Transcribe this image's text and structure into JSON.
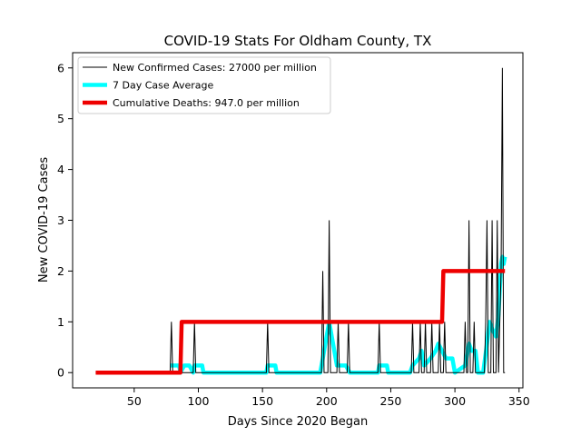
{
  "chart_data": {
    "type": "line",
    "title": "COVID-19 Stats For Oldham County, TX",
    "xlabel": "Days Since 2020 Began",
    "ylabel": "New COVID-19 Cases",
    "xlim": [
      2,
      353
    ],
    "ylim": [
      -0.3,
      6.3
    ],
    "xticks": [
      50,
      100,
      150,
      200,
      250,
      300,
      350
    ],
    "yticks": [
      0,
      1,
      2,
      3,
      4,
      5,
      6
    ],
    "grid": false,
    "legend_position": "top-left",
    "series": [
      {
        "name": "New Confirmed Cases: 27000 per million",
        "color": "#000000",
        "points": [
          [
            20,
            0
          ],
          [
            78,
            0
          ],
          [
            79,
            1
          ],
          [
            80,
            0
          ],
          [
            96,
            0
          ],
          [
            97,
            1
          ],
          [
            98,
            0
          ],
          [
            153,
            0
          ],
          [
            154,
            1
          ],
          [
            155,
            0
          ],
          [
            196,
            0
          ],
          [
            197,
            2
          ],
          [
            198,
            0
          ],
          [
            201,
            0
          ],
          [
            202,
            3
          ],
          [
            203,
            0
          ],
          [
            208,
            0
          ],
          [
            209,
            1
          ],
          [
            210,
            0
          ],
          [
            216,
            0
          ],
          [
            217,
            1
          ],
          [
            218,
            0
          ],
          [
            240,
            0
          ],
          [
            241,
            1
          ],
          [
            242,
            0
          ],
          [
            266,
            0
          ],
          [
            267,
            1
          ],
          [
            268,
            0
          ],
          [
            272,
            0
          ],
          [
            273,
            1
          ],
          [
            274,
            0
          ],
          [
            276,
            0
          ],
          [
            277,
            1
          ],
          [
            278,
            0
          ],
          [
            281,
            0
          ],
          [
            282,
            1
          ],
          [
            283,
            0
          ],
          [
            287,
            0
          ],
          [
            288,
            1
          ],
          [
            289,
            0
          ],
          [
            291,
            0
          ],
          [
            292,
            1
          ],
          [
            293,
            0
          ],
          [
            307,
            0
          ],
          [
            308,
            1
          ],
          [
            309,
            0
          ],
          [
            310,
            0
          ],
          [
            311,
            3
          ],
          [
            312,
            0
          ],
          [
            314,
            0
          ],
          [
            315,
            1
          ],
          [
            316,
            0
          ],
          [
            323,
            0
          ],
          [
            324,
            1
          ],
          [
            325,
            3
          ],
          [
            326,
            0
          ],
          [
            328,
            0
          ],
          [
            329,
            3
          ],
          [
            330,
            0
          ],
          [
            332,
            0
          ],
          [
            333,
            3
          ],
          [
            334,
            0
          ],
          [
            336,
            2
          ],
          [
            337,
            6
          ],
          [
            338,
            0
          ],
          [
            339,
            0
          ]
        ]
      },
      {
        "name": "7 Day Case Average",
        "color": "#00ffff",
        "points": [
          [
            78,
            0.14
          ],
          [
            85,
            0.14
          ],
          [
            86,
            0.0
          ],
          [
            89,
            0.14
          ],
          [
            93,
            0.14
          ],
          [
            96,
            0.0
          ],
          [
            97,
            0.14
          ],
          [
            103,
            0.14
          ],
          [
            104,
            0.0
          ],
          [
            153,
            0.0
          ],
          [
            154,
            0.14
          ],
          [
            160,
            0.14
          ],
          [
            161,
            0.0
          ],
          [
            195,
            0.0
          ],
          [
            197,
            0.28
          ],
          [
            199,
            0.57
          ],
          [
            202,
            1.0
          ],
          [
            204,
            0.71
          ],
          [
            206,
            0.43
          ],
          [
            208,
            0.14
          ],
          [
            215,
            0.14
          ],
          [
            218,
            0.0
          ],
          [
            240,
            0.0
          ],
          [
            241,
            0.14
          ],
          [
            247,
            0.14
          ],
          [
            248,
            0.0
          ],
          [
            265,
            0.0
          ],
          [
            267,
            0.14
          ],
          [
            272,
            0.28
          ],
          [
            274,
            0.43
          ],
          [
            276,
            0.14
          ],
          [
            281,
            0.28
          ],
          [
            285,
            0.43
          ],
          [
            287,
            0.57
          ],
          [
            290,
            0.43
          ],
          [
            293,
            0.28
          ],
          [
            298,
            0.28
          ],
          [
            300,
            0.0
          ],
          [
            308,
            0.14
          ],
          [
            311,
            0.57
          ],
          [
            313,
            0.43
          ],
          [
            316,
            0.43
          ],
          [
            318,
            0.0
          ],
          [
            322,
            0.0
          ],
          [
            325,
            0.57
          ],
          [
            327,
            1.0
          ],
          [
            329,
            0.86
          ],
          [
            332,
            0.71
          ],
          [
            334,
            1.14
          ],
          [
            336,
            2.14
          ],
          [
            337,
            2.28
          ],
          [
            338,
            2.14
          ],
          [
            339,
            2.28
          ]
        ]
      },
      {
        "name": "Cumulative Deaths: 947.0 per million",
        "color": "#ee0000",
        "points": [
          [
            20,
            0
          ],
          [
            86,
            0
          ],
          [
            87,
            1
          ],
          [
            290,
            1
          ],
          [
            291,
            2
          ],
          [
            339,
            2
          ]
        ]
      }
    ]
  }
}
